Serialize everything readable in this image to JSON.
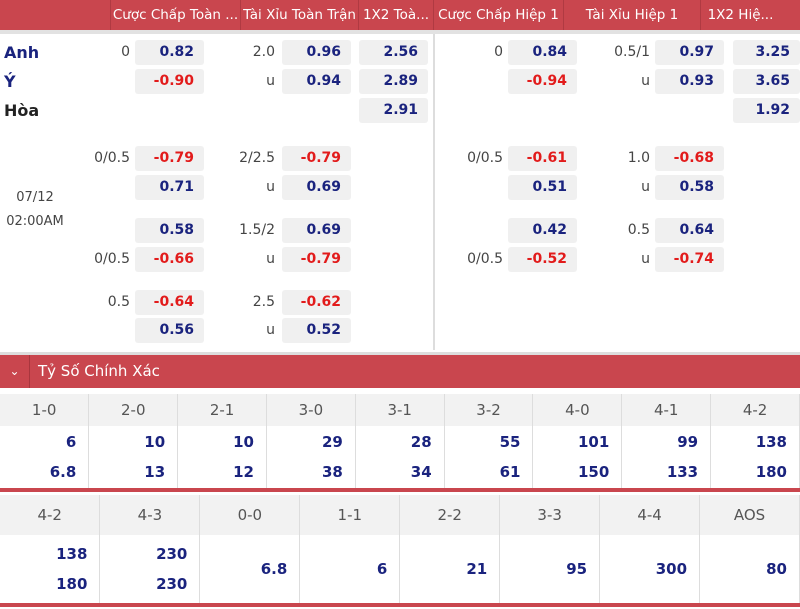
{
  "header": {
    "columns": [
      "Cược Chấp Toàn ...",
      "Tài Xỉu Toàn Trận",
      "1X2 Toà...",
      "Cược Chấp Hiệp 1",
      "Tài Xỉu Hiệp 1",
      "1X2 Hiệ..."
    ]
  },
  "teams": {
    "home": "Anh",
    "away": "Ý",
    "draw": "Hòa"
  },
  "match": {
    "date": "07/12",
    "time": "02:00AM"
  },
  "rows": [
    [
      "0",
      "0.82",
      "2.0",
      "0.96",
      "2.56",
      "0",
      "0.84",
      "0.5/1",
      "0.97",
      "3.25"
    ],
    [
      "",
      "-0.90",
      "u",
      "0.94",
      "2.89",
      "",
      "-0.94",
      "u",
      "0.93",
      "3.65"
    ],
    [
      "",
      "",
      "",
      "",
      "2.91",
      "",
      "",
      "",
      "",
      "1.92"
    ],
    [
      "0/0.5",
      "-0.79",
      "2/2.5",
      "-0.79",
      "",
      "0/0.5",
      "-0.61",
      "1.0",
      "-0.68",
      ""
    ],
    [
      "",
      "0.71",
      "u",
      "0.69",
      "",
      "",
      "0.51",
      "u",
      "0.58",
      ""
    ],
    [
      "",
      "0.58",
      "1.5/2",
      "0.69",
      "",
      "",
      "0.42",
      "0.5",
      "0.64",
      ""
    ],
    [
      "0/0.5",
      "-0.66",
      "u",
      "-0.79",
      "",
      "0/0.5",
      "-0.52",
      "u",
      "-0.74",
      ""
    ],
    [
      "0.5",
      "-0.64",
      "2.5",
      "-0.62",
      "",
      "",
      "",
      "",
      "",
      ""
    ],
    [
      "",
      "0.56",
      "u",
      "0.52",
      "",
      "",
      "",
      "",
      "",
      ""
    ]
  ],
  "correct_score": {
    "title": "Tỷ Số Chính Xác",
    "table1": {
      "headers": [
        "1-0",
        "2-0",
        "2-1",
        "3-0",
        "3-1",
        "3-2",
        "4-0",
        "4-1",
        "4-2"
      ],
      "values": [
        [
          "6",
          "6.8"
        ],
        [
          "10",
          "13"
        ],
        [
          "10",
          "12"
        ],
        [
          "29",
          "38"
        ],
        [
          "28",
          "34"
        ],
        [
          "55",
          "61"
        ],
        [
          "101",
          "150"
        ],
        [
          "99",
          "133"
        ],
        [
          "138",
          "180"
        ]
      ]
    },
    "table2": {
      "headers": [
        "4-2",
        "4-3",
        "0-0",
        "1-1",
        "2-2",
        "3-3",
        "4-4",
        "AOS"
      ],
      "values": [
        [
          "138",
          "180"
        ],
        [
          "230",
          "230"
        ],
        [
          "6.8"
        ],
        [
          "6"
        ],
        [
          "21"
        ],
        [
          "95"
        ],
        [
          "300"
        ],
        [
          "80"
        ]
      ]
    }
  }
}
